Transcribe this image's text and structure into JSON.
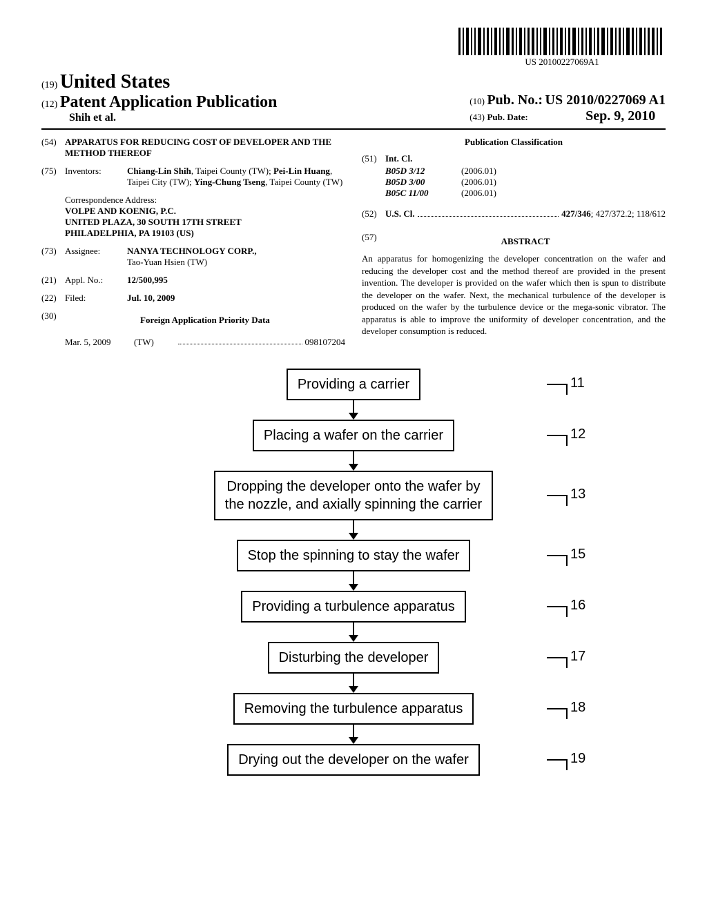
{
  "barcode_text": "US 20100227069A1",
  "header": {
    "country_code": "(19)",
    "country": "United States",
    "pub_code": "(12)",
    "publication_type": "Patent Application Publication",
    "authors": "Shih et al.",
    "pub_no_code": "(10)",
    "pub_no_label": "Pub. No.:",
    "pub_no": "US 2010/0227069 A1",
    "pub_date_code": "(43)",
    "pub_date_label": "Pub. Date:",
    "pub_date": "Sep. 9, 2010"
  },
  "left_col": {
    "title_code": "(54)",
    "title": "APPARATUS FOR REDUCING COST OF DEVELOPER AND THE METHOD THEREOF",
    "inventors_code": "(75)",
    "inventors_label": "Inventors:",
    "inventors": "Chiang-Lin Shih, Taipei County (TW); Pei-Lin Huang, Taipei City (TW); Ying-Chung Tseng, Taipei County (TW)",
    "correspondence_label": "Correspondence Address:",
    "correspondence_lines": [
      "VOLPE AND KOENIG, P.C.",
      "UNITED PLAZA, 30 SOUTH 17TH STREET",
      "PHILADELPHIA, PA 19103 (US)"
    ],
    "assignee_code": "(73)",
    "assignee_label": "Assignee:",
    "assignee": "NANYA TECHNOLOGY CORP.,",
    "assignee_loc": "Tao-Yuan Hsien (TW)",
    "appl_code": "(21)",
    "appl_label": "Appl. No.:",
    "appl_no": "12/500,995",
    "filed_code": "(22)",
    "filed_label": "Filed:",
    "filed": "Jul. 10, 2009",
    "priority_code": "(30)",
    "priority_heading": "Foreign Application Priority Data",
    "priority_date": "Mar. 5, 2009",
    "priority_country": "(TW)",
    "priority_number": "098107204"
  },
  "right_col": {
    "classification_heading": "Publication Classification",
    "intcl_code": "(51)",
    "intcl_label": "Int. Cl.",
    "intcl": [
      {
        "code": "B05D 3/12",
        "year": "(2006.01)"
      },
      {
        "code": "B05D 3/00",
        "year": "(2006.01)"
      },
      {
        "code": "B05C 11/00",
        "year": "(2006.01)"
      }
    ],
    "uscl_code": "(52)",
    "uscl_label": "U.S. Cl.",
    "uscl_main": "427/346",
    "uscl_rest": "; 427/372.2; 118/612",
    "abstract_code": "(57)",
    "abstract_heading": "ABSTRACT",
    "abstract": "An apparatus for homogenizing the developer concentration on the wafer and reducing the developer cost and the method thereof are provided in the present invention. The developer is provided on the wafer which then is spun to distribute the developer on the wafer. Next, the mechanical turbulence of the developer is produced on the wafer by the turbulence device or the mega-sonic vibrator. The apparatus is able to improve the uniformity of developer concentration, and the developer consumption is reduced."
  },
  "flowchart": {
    "steps": [
      {
        "text": "Providing a carrier",
        "num": "11"
      },
      {
        "text": "Placing a wafer on the carrier",
        "num": "12"
      },
      {
        "text": "Dropping the developer onto the wafer by\nthe nozzle, and axially spinning the carrier",
        "num": "13"
      },
      {
        "text": "Stop the spinning to stay the wafer",
        "num": "15"
      },
      {
        "text": "Providing a turbulence apparatus",
        "num": "16"
      },
      {
        "text": "Disturbing the developer",
        "num": "17"
      },
      {
        "text": "Removing the turbulence apparatus",
        "num": "18"
      },
      {
        "text": "Drying out the developer on the wafer",
        "num": "19"
      }
    ]
  }
}
